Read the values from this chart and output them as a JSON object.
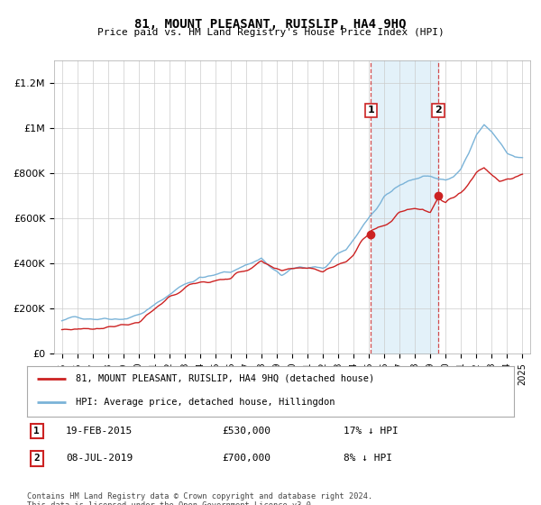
{
  "title": "81, MOUNT PLEASANT, RUISLIP, HA4 9HQ",
  "subtitle": "Price paid vs. HM Land Registry's House Price Index (HPI)",
  "footer": "Contains HM Land Registry data © Crown copyright and database right 2024.\nThis data is licensed under the Open Government Licence v3.0.",
  "legend_label_red": "81, MOUNT PLEASANT, RUISLIP, HA4 9HQ (detached house)",
  "legend_label_blue": "HPI: Average price, detached house, Hillingdon",
  "sale1_label": "1",
  "sale1_date": "19-FEB-2015",
  "sale1_price": "£530,000",
  "sale1_hpi": "17% ↓ HPI",
  "sale1_year": 2015.12,
  "sale1_value": 530000,
  "sale2_label": "2",
  "sale2_date": "08-JUL-2019",
  "sale2_price": "£700,000",
  "sale2_hpi": "8% ↓ HPI",
  "sale2_year": 2019.52,
  "sale2_value": 700000,
  "hpi_color": "#7ab3d8",
  "property_color": "#cc2222",
  "shade_color": "#ddeef8",
  "marker_color": "#cc2222",
  "ylim": [
    0,
    1300000
  ],
  "yticks": [
    0,
    200000,
    400000,
    600000,
    800000,
    1000000,
    1200000
  ],
  "ytick_labels": [
    "£0",
    "£200K",
    "£400K",
    "£600K",
    "£800K",
    "£1M",
    "£1.2M"
  ]
}
